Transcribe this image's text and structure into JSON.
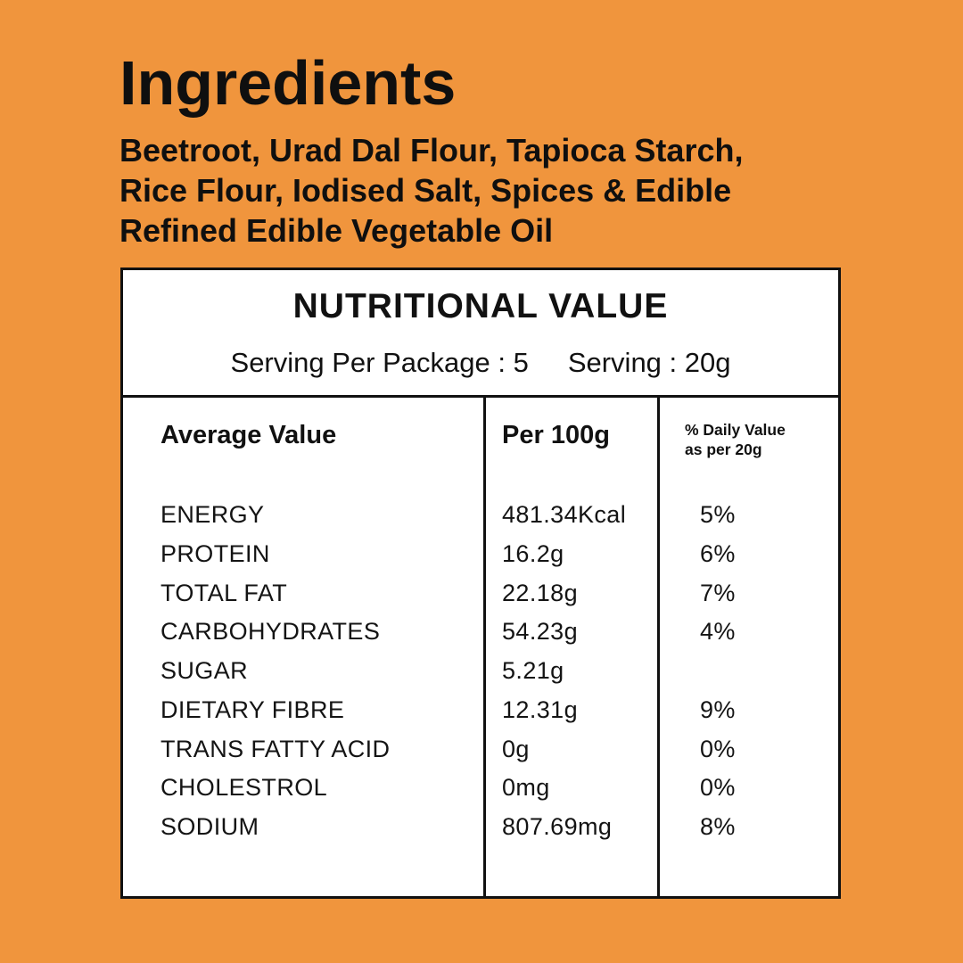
{
  "colors": {
    "background": "#F0953D",
    "text": "#111111",
    "panel_background": "#FFFFFF",
    "panel_border": "#111111"
  },
  "ingredients": {
    "title": "Ingredients",
    "lines": [
      "Beetroot, Urad Dal Flour, Tapioca Starch,",
      "Rice Flour, Iodised Salt, Spices & Edible",
      "Refined Edible Vegetable Oil"
    ]
  },
  "nutrition": {
    "title": "NUTRITIONAL VALUE",
    "serving_per_package": "Serving Per Package : 5",
    "serving_size": "Serving : 20g",
    "columns": {
      "label": "Average Value",
      "per_100g": "Per 100g",
      "daily_value_line1": "% Daily Value",
      "daily_value_line2": "as per 20g"
    },
    "rows": [
      {
        "name": "ENERGY",
        "per_100g": "481.34Kcal",
        "daily_value": "5%"
      },
      {
        "name": "PROTEIN",
        "per_100g": "16.2g",
        "daily_value": "6%"
      },
      {
        "name": "TOTAL FAT",
        "per_100g": "22.18g",
        "daily_value": "7%"
      },
      {
        "name": "CARBOHYDRATES",
        "per_100g": "54.23g",
        "daily_value": "4%"
      },
      {
        "name": "SUGAR",
        "per_100g": "5.21g",
        "daily_value": ""
      },
      {
        "name": "DIETARY FIBRE",
        "per_100g": "12.31g",
        "daily_value": "9%"
      },
      {
        "name": "TRANS FATTY ACID",
        "per_100g": "0g",
        "daily_value": "0%"
      },
      {
        "name": "CHOLESTROL",
        "per_100g": "0mg",
        "daily_value": "0%"
      },
      {
        "name": "SODIUM",
        "per_100g": "807.69mg",
        "daily_value": "8%"
      }
    ]
  }
}
